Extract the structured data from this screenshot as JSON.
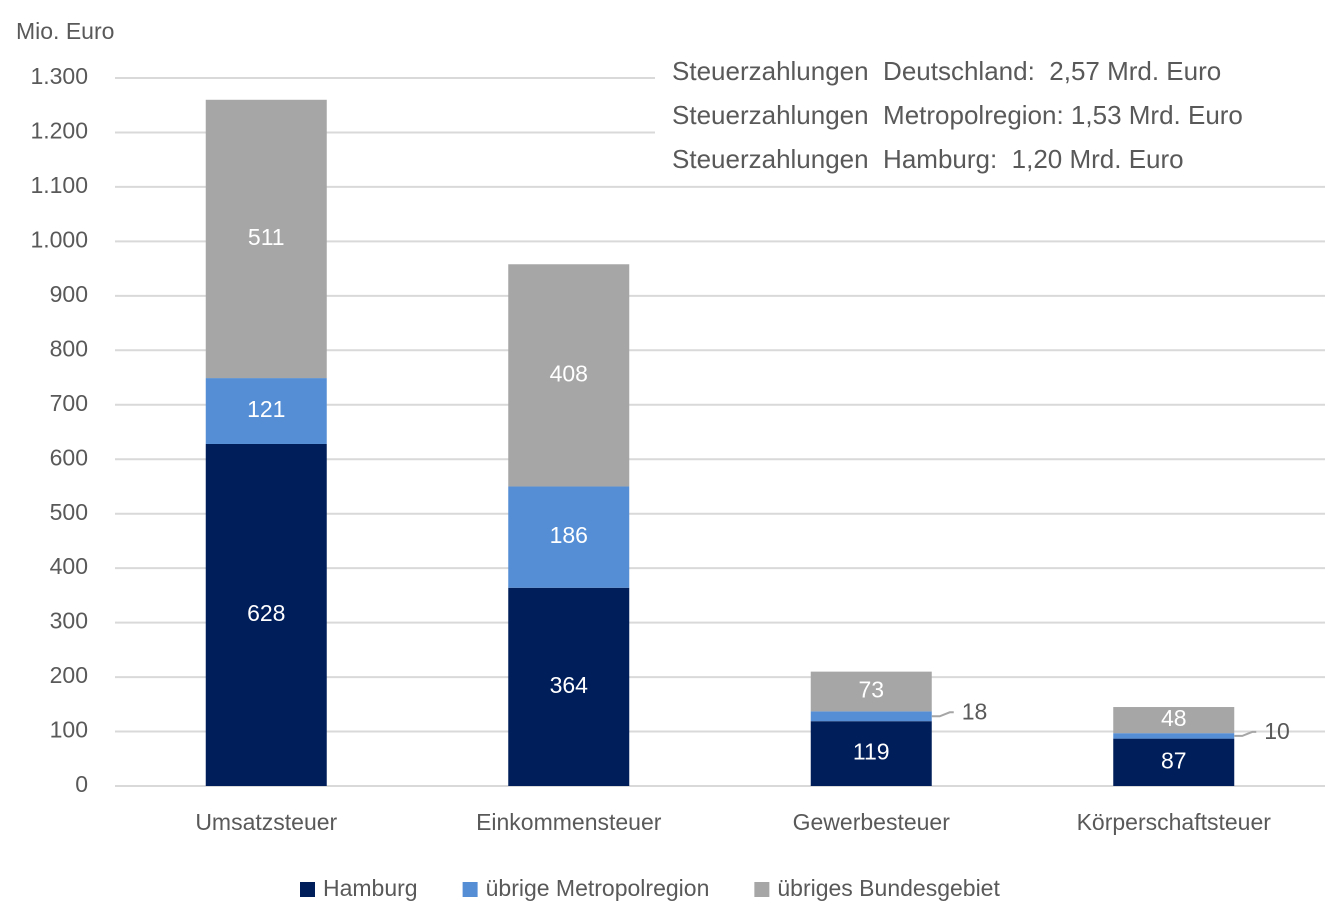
{
  "chart_data": {
    "type": "stacked-bar",
    "y_axis_label": "Mio. Euro",
    "annotations": [
      "Steuerzahlungen  Deutschland:  2,57 Mrd. Euro",
      "Steuerzahlungen  Metropolregion: 1,53 Mrd. Euro",
      "Steuerzahlungen  Hamburg:  1,20 Mrd. Euro"
    ],
    "categories": [
      "Umsatzsteuer",
      "Einkommensteuer",
      "Gewerbesteuer",
      "Körperschaftsteuer"
    ],
    "series": [
      {
        "name": "Hamburg",
        "color": "#001e5a",
        "values": [
          628,
          364,
          119,
          87
        ]
      },
      {
        "name": "übrige Metropolregion",
        "color": "#558ed5",
        "values": [
          121,
          186,
          18,
          10
        ]
      },
      {
        "name": "übriges Bundesgebiet",
        "color": "#a6a6a6",
        "values": [
          511,
          408,
          73,
          48
        ]
      }
    ],
    "ylim": [
      0,
      1300
    ],
    "yticks": [
      0,
      100,
      200,
      300,
      400,
      500,
      600,
      700,
      800,
      900,
      {
        "value": 1000,
        "label": "1.000"
      },
      {
        "value": 1100,
        "label": "1.100"
      },
      {
        "value": 1200,
        "label": "1.200"
      },
      {
        "value": 1300,
        "label": "1.300"
      }
    ],
    "grid": true,
    "legend": "bottom"
  }
}
